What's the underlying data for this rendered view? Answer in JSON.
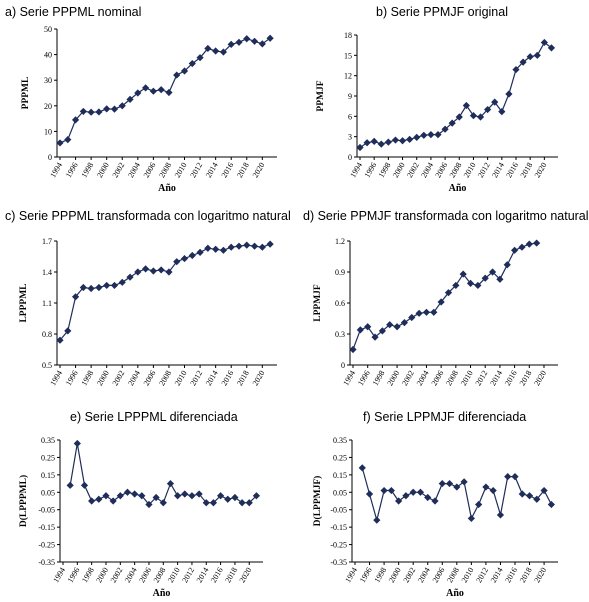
{
  "chart_data": [
    {
      "type": "line",
      "title": "a) Serie PPPML nominal",
      "xlabel": "Año",
      "ylabel": "PPPML",
      "x": [
        1994,
        1995,
        1996,
        1997,
        1998,
        1999,
        2000,
        2001,
        2002,
        2003,
        2004,
        2005,
        2006,
        2007,
        2008,
        2009,
        2010,
        2011,
        2012,
        2013,
        2014,
        2015,
        2016,
        2017,
        2018,
        2019,
        2020,
        2021
      ],
      "values": [
        5.5,
        6.8,
        14.5,
        17.8,
        17.5,
        17.6,
        18.8,
        18.7,
        20.0,
        22.5,
        25.0,
        27.0,
        25.7,
        26.3,
        25.2,
        32.0,
        33.6,
        36.5,
        38.8,
        42.4,
        41.4,
        41.0,
        44.0,
        44.8,
        46.2,
        45.2,
        44.2,
        46.4
      ],
      "ylim": [
        0,
        50
      ],
      "yticks": [
        "0",
        "10",
        "20",
        "30",
        "40",
        "50"
      ],
      "xticks": [
        "1994",
        "1996",
        "1998",
        "2000",
        "2002",
        "2004",
        "2006",
        "2008",
        "2010",
        "2012",
        "2014",
        "2016",
        "2018",
        "2020"
      ],
      "grid": false
    },
    {
      "type": "line",
      "title": "b) Serie PPMJF original",
      "xlabel": "Año",
      "ylabel": "PPMJF",
      "x": [
        1994,
        1995,
        1996,
        1997,
        1998,
        1999,
        2000,
        2001,
        2002,
        2003,
        2004,
        2005,
        2006,
        2007,
        2008,
        2009,
        2010,
        2011,
        2012,
        2013,
        2014,
        2015,
        2016,
        2017,
        2018,
        2019,
        2020,
        2021
      ],
      "values": [
        1.4,
        2.1,
        2.3,
        1.9,
        2.2,
        2.5,
        2.4,
        2.6,
        2.9,
        3.2,
        3.3,
        3.3,
        4.1,
        5.0,
        5.9,
        7.6,
        6.1,
        5.9,
        7.0,
        8.1,
        6.7,
        9.3,
        12.9,
        14.0,
        14.8,
        15.0,
        16.9,
        16.1
      ],
      "ylim": [
        0,
        18
      ],
      "yticks": [
        "0",
        "3",
        "6",
        "9",
        "12",
        "15",
        "18"
      ],
      "xticks": [
        "1994",
        "1996",
        "1998",
        "2000",
        "2002",
        "2004",
        "2006",
        "2008",
        "2010",
        "2012",
        "2014",
        "2016",
        "2018",
        "2020"
      ],
      "grid": false
    },
    {
      "type": "line",
      "title": "c) Serie PPPML transformada con logaritmo natural",
      "xlabel": "",
      "ylabel": "LPPPML",
      "x": [
        1994,
        1995,
        1996,
        1997,
        1998,
        1999,
        2000,
        2001,
        2002,
        2003,
        2004,
        2005,
        2006,
        2007,
        2008,
        2009,
        2010,
        2011,
        2012,
        2013,
        2014,
        2015,
        2016,
        2017,
        2018,
        2019,
        2020,
        2021
      ],
      "values": [
        0.74,
        0.83,
        1.16,
        1.25,
        1.24,
        1.25,
        1.27,
        1.27,
        1.3,
        1.35,
        1.4,
        1.43,
        1.41,
        1.42,
        1.4,
        1.5,
        1.53,
        1.56,
        1.59,
        1.63,
        1.62,
        1.61,
        1.64,
        1.65,
        1.66,
        1.65,
        1.64,
        1.67
      ],
      "ylim": [
        0.5,
        1.7
      ],
      "yticks": [
        "0.5",
        "0.8",
        "1.1",
        "1.4",
        "1.7"
      ],
      "xticks": [
        "1994",
        "1996",
        "1998",
        "2000",
        "2002",
        "2004",
        "2006",
        "2008",
        "2010",
        "2012",
        "2014",
        "2016",
        "2018",
        "2020"
      ],
      "grid": false
    },
    {
      "type": "line",
      "title": "d) Serie PPMJF transformada con logaritmo natural",
      "xlabel": "",
      "ylabel": "LPPMJF",
      "x": [
        1994,
        1995,
        1996,
        1997,
        1998,
        1999,
        2000,
        2001,
        2002,
        2003,
        2004,
        2005,
        2006,
        2007,
        2008,
        2009,
        2010,
        2011,
        2012,
        2013,
        2014,
        2015,
        2016,
        2017,
        2018,
        2019
      ],
      "values": [
        0.15,
        0.34,
        0.37,
        0.27,
        0.33,
        0.39,
        0.37,
        0.41,
        0.46,
        0.5,
        0.51,
        0.51,
        0.61,
        0.7,
        0.77,
        0.88,
        0.79,
        0.77,
        0.84,
        0.9,
        0.83,
        0.97,
        1.11,
        1.14,
        1.17,
        1.18
      ],
      "ylim": [
        0,
        1.2
      ],
      "yticks": [
        "0",
        "0.3",
        "0.6",
        "0.9",
        "1.2"
      ],
      "xticks": [
        "1994",
        "1996",
        "1998",
        "2000",
        "2002",
        "2004",
        "2006",
        "2008",
        "2010",
        "2012",
        "2014",
        "2016",
        "2018",
        "2020"
      ],
      "grid": false
    },
    {
      "type": "line",
      "title": "e) Serie LPPPML diferenciada",
      "xlabel": "Año",
      "ylabel": "D(LPPPML)",
      "x": [
        1995,
        1996,
        1997,
        1998,
        1999,
        2000,
        2001,
        2002,
        2003,
        2004,
        2005,
        2006,
        2007,
        2008,
        2009,
        2010,
        2011,
        2012,
        2013,
        2014,
        2015,
        2016,
        2017,
        2018,
        2019,
        2020,
        2021
      ],
      "values": [
        0.09,
        0.33,
        0.09,
        0.0,
        0.01,
        0.03,
        0.0,
        0.03,
        0.05,
        0.04,
        0.03,
        -0.02,
        0.02,
        -0.01,
        0.1,
        0.03,
        0.04,
        0.03,
        0.04,
        -0.01,
        -0.01,
        0.03,
        0.01,
        0.02,
        -0.01,
        -0.01,
        0.03
      ],
      "ylim": [
        -0.35,
        0.35
      ],
      "yticks": [
        "-0.35",
        "-0.25",
        "-0.15",
        "-0.05",
        "0.05",
        "0.15",
        "0.25",
        "0.35"
      ],
      "xticks": [
        "1994",
        "1996",
        "1998",
        "2000",
        "2002",
        "2004",
        "2006",
        "2008",
        "2010",
        "2012",
        "2014",
        "2016",
        "2018",
        "2020"
      ],
      "grid": false
    },
    {
      "type": "line",
      "title": "f) Serie LPPMJF diferenciada",
      "xlabel": "Año",
      "ylabel": "D(LPPMJF)",
      "x": [
        1995,
        1996,
        1997,
        1998,
        1999,
        2000,
        2001,
        2002,
        2003,
        2004,
        2005,
        2006,
        2007,
        2008,
        2009,
        2010,
        2011,
        2012,
        2013,
        2014,
        2015,
        2016,
        2017,
        2018,
        2019,
        2020,
        2021
      ],
      "values": [
        0.19,
        0.04,
        -0.11,
        0.06,
        0.06,
        0.0,
        0.03,
        0.05,
        0.05,
        0.02,
        0.0,
        0.1,
        0.1,
        0.08,
        0.11,
        -0.1,
        -0.02,
        0.08,
        0.06,
        -0.08,
        0.14,
        0.14,
        0.04,
        0.03,
        0.01,
        0.06,
        -0.02
      ],
      "ylim": [
        -0.35,
        0.35
      ],
      "yticks": [
        "-0.35",
        "-0.25",
        "-0.15",
        "-0.05",
        "0.05",
        "0.15",
        "0.25",
        "0.35"
      ],
      "xticks": [
        "1994",
        "1996",
        "1998",
        "2000",
        "2002",
        "2004",
        "2006",
        "2008",
        "2010",
        "2012",
        "2014",
        "2016",
        "2018",
        "2020"
      ],
      "grid": false
    }
  ],
  "colors": {
    "series": "#1f2d5a",
    "axis": "#000000"
  }
}
